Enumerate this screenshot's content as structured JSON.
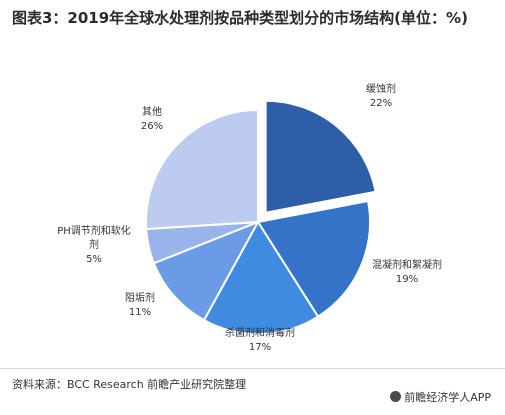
{
  "title": "图表3：2019年全球水处理剂按品种类型划分的市场结构(单位：%)",
  "source": "资料来源：BCC Research 前瞻产业研究院整理",
  "brand": "前瞻经济学人APP",
  "chart_data": {
    "type": "pie",
    "title": "图表3：2019年全球水处理剂按品种类型划分的市场结构(单位：%)",
    "categories": [
      "缓蚀剂",
      "混凝剂和絮凝剂",
      "杀菌剂和消毒剂",
      "阻垢剂",
      "PH调节剂和软化剂",
      "其他"
    ],
    "values": [
      22,
      19,
      17,
      11,
      5,
      26
    ],
    "value_labels": [
      "22%",
      "19%",
      "17%",
      "11%",
      "5%",
      "26%"
    ],
    "colors": [
      "#2e5ea8",
      "#3573c8",
      "#3f8be0",
      "#6b9be6",
      "#98b4ea",
      "#bccbef"
    ],
    "exploded": "缓蚀剂",
    "legend": "none"
  }
}
